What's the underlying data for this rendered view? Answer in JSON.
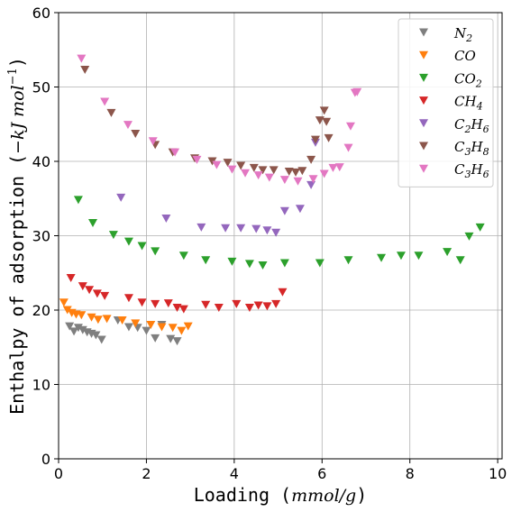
{
  "chart_data": {
    "type": "scatter",
    "marker": "triangle-down",
    "xlabel": "Loading (mmol/g)",
    "ylabel": "Enthalpy of adsorption (−kJ mol⁻¹)",
    "xlim": [
      0,
      10.1
    ],
    "ylim": [
      0,
      60
    ],
    "xticks": [
      0,
      2,
      4,
      6,
      8,
      10
    ],
    "yticks": [
      0,
      10,
      20,
      30,
      40,
      50,
      60
    ],
    "grid": true,
    "legend_position": "top-right",
    "series": [
      {
        "key": "N2",
        "name_main": "N",
        "name_sub": "2",
        "color": "#7f7f7f",
        "points": [
          [
            0.25,
            17.8
          ],
          [
            0.35,
            17.1
          ],
          [
            0.45,
            17.6
          ],
          [
            0.55,
            17.3
          ],
          [
            0.65,
            17.0
          ],
          [
            0.75,
            16.8
          ],
          [
            0.85,
            16.6
          ],
          [
            0.98,
            16.0
          ],
          [
            1.35,
            18.6
          ],
          [
            1.6,
            17.7
          ],
          [
            1.8,
            17.6
          ],
          [
            2.0,
            17.2
          ],
          [
            2.2,
            16.2
          ],
          [
            2.35,
            18.0
          ],
          [
            2.55,
            16.1
          ],
          [
            2.7,
            15.8
          ]
        ]
      },
      {
        "key": "CO",
        "name_main": "CO",
        "name_sub": "",
        "color": "#ff7f0e",
        "points": [
          [
            0.12,
            21.0
          ],
          [
            0.2,
            20.0
          ],
          [
            0.3,
            19.6
          ],
          [
            0.4,
            19.4
          ],
          [
            0.52,
            19.3
          ],
          [
            0.75,
            19.0
          ],
          [
            0.9,
            18.7
          ],
          [
            1.1,
            18.8
          ],
          [
            1.45,
            18.6
          ],
          [
            1.75,
            18.2
          ],
          [
            2.1,
            18.0
          ],
          [
            2.35,
            17.7
          ],
          [
            2.6,
            17.6
          ],
          [
            2.8,
            17.2
          ],
          [
            2.95,
            17.8
          ]
        ]
      },
      {
        "key": "CO2",
        "name_main": "CO",
        "name_sub": "2",
        "color": "#2ca02c",
        "points": [
          [
            0.45,
            34.8
          ],
          [
            0.78,
            31.7
          ],
          [
            1.25,
            30.1
          ],
          [
            1.6,
            29.2
          ],
          [
            1.9,
            28.6
          ],
          [
            2.2,
            27.9
          ],
          [
            2.85,
            27.3
          ],
          [
            3.35,
            26.7
          ],
          [
            3.95,
            26.5
          ],
          [
            4.35,
            26.2
          ],
          [
            4.65,
            26.0
          ],
          [
            5.15,
            26.3
          ],
          [
            5.95,
            26.3
          ],
          [
            6.6,
            26.7
          ],
          [
            7.35,
            27.0
          ],
          [
            7.8,
            27.3
          ],
          [
            8.2,
            27.3
          ],
          [
            8.85,
            27.8
          ],
          [
            9.15,
            26.7
          ],
          [
            9.35,
            29.9
          ],
          [
            9.6,
            31.1
          ]
        ]
      },
      {
        "key": "CH4",
        "name_main": "CH",
        "name_sub": "4",
        "color": "#d62728",
        "points": [
          [
            0.28,
            24.3
          ],
          [
            0.55,
            23.2
          ],
          [
            0.7,
            22.7
          ],
          [
            0.88,
            22.2
          ],
          [
            1.05,
            21.9
          ],
          [
            1.6,
            21.6
          ],
          [
            1.9,
            21.0
          ],
          [
            2.2,
            20.8
          ],
          [
            2.5,
            20.9
          ],
          [
            2.7,
            20.3
          ],
          [
            2.85,
            20.1
          ],
          [
            3.35,
            20.7
          ],
          [
            3.65,
            20.3
          ],
          [
            4.05,
            20.8
          ],
          [
            4.35,
            20.3
          ],
          [
            4.55,
            20.6
          ],
          [
            4.75,
            20.5
          ],
          [
            4.95,
            20.8
          ],
          [
            5.1,
            22.4
          ]
        ]
      },
      {
        "key": "C2H6",
        "name_main": "C",
        "name_sub": "2",
        "name_main2": "H",
        "name_sub2": "6",
        "color": "#9467bd",
        "points": [
          [
            1.42,
            35.1
          ],
          [
            2.45,
            32.3
          ],
          [
            3.25,
            31.1
          ],
          [
            3.8,
            31.0
          ],
          [
            4.15,
            31.0
          ],
          [
            4.5,
            30.9
          ],
          [
            4.75,
            30.7
          ],
          [
            4.95,
            30.4
          ],
          [
            5.15,
            33.3
          ],
          [
            5.5,
            33.6
          ],
          [
            5.75,
            36.8
          ],
          [
            5.85,
            42.5
          ]
        ]
      },
      {
        "key": "C3H8",
        "name_main": "C",
        "name_sub": "3",
        "name_main2": "H",
        "name_sub2": "8",
        "color": "#8c564b",
        "points": [
          [
            0.6,
            52.3
          ],
          [
            1.2,
            46.5
          ],
          [
            1.75,
            43.7
          ],
          [
            2.2,
            42.2
          ],
          [
            2.6,
            41.2
          ],
          [
            3.1,
            40.4
          ],
          [
            3.5,
            40.0
          ],
          [
            3.85,
            39.8
          ],
          [
            4.15,
            39.4
          ],
          [
            4.45,
            39.1
          ],
          [
            4.65,
            38.8
          ],
          [
            4.9,
            38.8
          ],
          [
            5.25,
            38.6
          ],
          [
            5.4,
            38.5
          ],
          [
            5.55,
            38.7
          ],
          [
            5.75,
            40.2
          ],
          [
            5.85,
            42.9
          ],
          [
            5.95,
            45.5
          ],
          [
            6.05,
            46.8
          ],
          [
            6.1,
            45.3
          ],
          [
            6.15,
            43.1
          ]
        ]
      },
      {
        "key": "C3H6",
        "name_main": "C",
        "name_sub": "3",
        "name_main2": "H",
        "name_sub2": "6",
        "color": "#e377c2",
        "points": [
          [
            0.52,
            53.8
          ],
          [
            1.05,
            48.0
          ],
          [
            1.58,
            44.9
          ],
          [
            2.15,
            42.7
          ],
          [
            2.65,
            41.2
          ],
          [
            3.15,
            40.2
          ],
          [
            3.6,
            39.5
          ],
          [
            3.95,
            38.9
          ],
          [
            4.25,
            38.4
          ],
          [
            4.55,
            38.1
          ],
          [
            4.8,
            37.8
          ],
          [
            5.15,
            37.5
          ],
          [
            5.45,
            37.3
          ],
          [
            5.8,
            37.6
          ],
          [
            6.05,
            38.3
          ],
          [
            6.25,
            39.1
          ],
          [
            6.4,
            39.2
          ],
          [
            6.6,
            41.8
          ],
          [
            6.65,
            44.7
          ],
          [
            6.75,
            49.2
          ],
          [
            6.8,
            49.3
          ]
        ]
      }
    ]
  }
}
